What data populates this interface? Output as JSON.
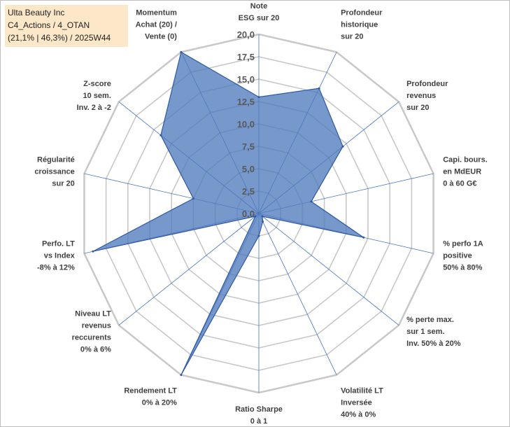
{
  "info": {
    "company": "Ulta Beauty Inc",
    "line2": "C4_Actions / 4_OTAN",
    "line3": "(21,1% | 46,3%) / 2025W44"
  },
  "chart_data": {
    "type": "radar",
    "title": "",
    "rmin": 0,
    "rmax": 20,
    "tick_step": 2.5,
    "tick_labels": [
      "0,0",
      "2,5",
      "5,0",
      "7,5",
      "10,0",
      "12,5",
      "15,0",
      "17,5",
      "20,0"
    ],
    "grid": true,
    "colors": {
      "fill": "#4f7bbd",
      "stroke": "#2f58a6",
      "grid": "#c8c8c8",
      "spoke": "#4472c4"
    },
    "axes": [
      {
        "key": "esg",
        "label": [
          "Note",
          "ESG sur 20"
        ]
      },
      {
        "key": "prof_hist",
        "label": [
          "Profondeur",
          "historique",
          "sur 20"
        ]
      },
      {
        "key": "prof_rev",
        "label": [
          "Profondeur",
          "revenus",
          "sur 20"
        ]
      },
      {
        "key": "cap",
        "label": [
          "Capi. bours.",
          "en MdEUR",
          "0 à 60 G€"
        ]
      },
      {
        "key": "perf1a",
        "label": [
          "% perfo 1A",
          "positive",
          "50% à 80%"
        ]
      },
      {
        "key": "perte",
        "label": [
          "% perte max.",
          "sur 1 sem.",
          "Inv. 50% à 20%"
        ]
      },
      {
        "key": "vol",
        "label": [
          "Volatilité LT",
          "Inversée",
          "40% à 0%"
        ]
      },
      {
        "key": "sharpe",
        "label": [
          "Ratio Sharpe",
          "0 à 1"
        ]
      },
      {
        "key": "rend",
        "label": [
          "Rendement LT",
          "0% à 20%"
        ]
      },
      {
        "key": "recur",
        "label": [
          "Niveau LT",
          "revenus",
          "reccurents",
          "0% à 6%"
        ]
      },
      {
        "key": "perflt",
        "label": [
          "Perfo. LT",
          "vs Index",
          "-8% à 12%"
        ]
      },
      {
        "key": "regul",
        "label": [
          "Régularité",
          "croissance",
          "sur 20"
        ]
      },
      {
        "key": "zscore",
        "label": [
          "Z-score",
          "10 sem.",
          "Inv. 2 à -2"
        ]
      },
      {
        "key": "momentum",
        "label": [
          "Momentum",
          "Achat (20) /",
          "Vente (0)"
        ]
      }
    ],
    "series": [
      {
        "name": "Ulta Beauty Inc",
        "values": [
          13,
          15.5,
          12,
          6,
          12,
          0.5,
          1,
          2.5,
          20,
          0.5,
          19,
          7.5,
          14,
          20
        ]
      }
    ]
  }
}
